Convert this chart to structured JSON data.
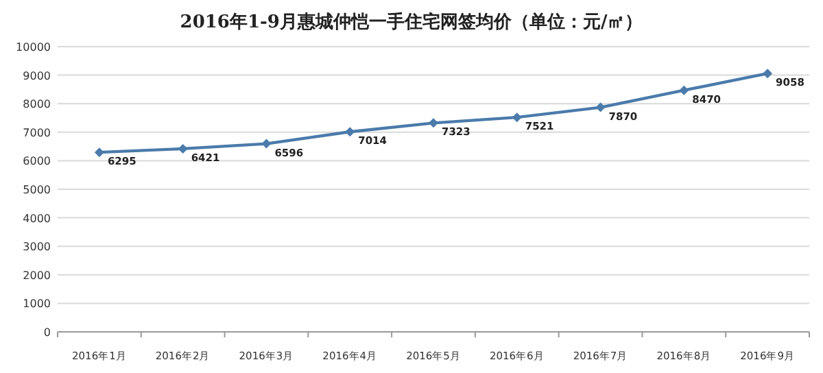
{
  "chart_data": {
    "type": "line",
    "title": "2016年1-9月惠城仲恺一手住宅网签均价（单位：元/㎡）",
    "categories": [
      "2016年1月",
      "2016年2月",
      "2016年3月",
      "2016年4月",
      "2016年5月",
      "2016年6月",
      "2016年7月",
      "2016年8月",
      "2016年9月"
    ],
    "values": [
      6295,
      6421,
      6596,
      7014,
      7323,
      7521,
      7870,
      8470,
      9058
    ],
    "color": "#4a7bab",
    "ylim": [
      0,
      10000
    ],
    "yticks": [
      0,
      1000,
      2000,
      3000,
      4000,
      5000,
      6000,
      7000,
      8000,
      9000,
      10000
    ],
    "grid": "y",
    "marker": "diamond",
    "data_labels": true
  }
}
